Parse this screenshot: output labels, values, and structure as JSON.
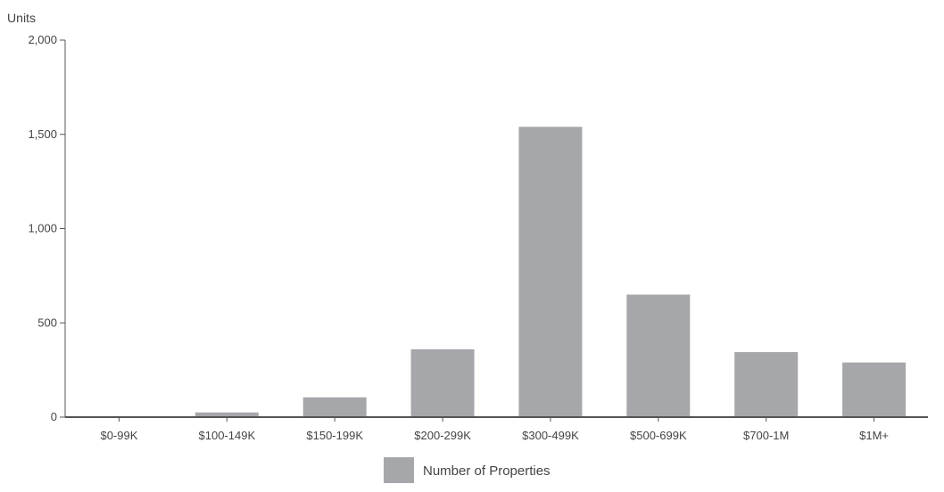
{
  "chart_data": {
    "type": "bar",
    "ylabel": "Units",
    "xlabel": "",
    "categories": [
      "$0-99K",
      "$100-149K",
      "$150-199K",
      "$200-299K",
      "$300-499K",
      "$500-699K",
      "$700-1M",
      "$1M+"
    ],
    "series": [
      {
        "name": "Number of Properties",
        "values": [
          0,
          25,
          105,
          360,
          1540,
          650,
          345,
          290
        ]
      }
    ],
    "ylim": [
      0,
      2000
    ],
    "yticks": [
      0,
      500,
      1000,
      1500,
      2000
    ],
    "ytick_labels": [
      "0",
      "500",
      "1,000",
      "1,500",
      "2,000"
    ],
    "grid": false,
    "legend_position": "bottom-center"
  },
  "colors": {
    "bar": "#a6a7ab",
    "axis": "#555555",
    "text": "#444444"
  }
}
